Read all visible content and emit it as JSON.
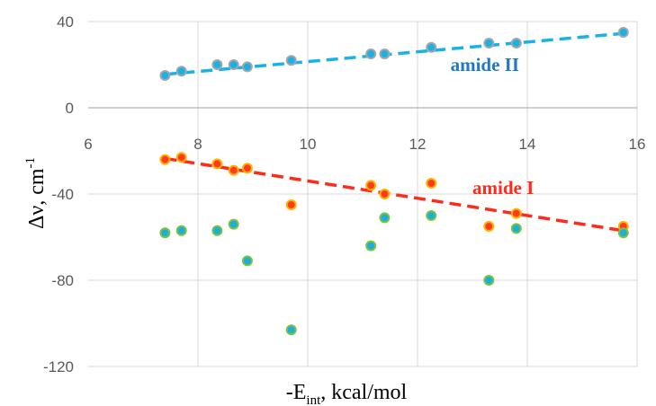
{
  "chart_data": {
    "type": "scatter",
    "title": "",
    "xlabel": {
      "base": "-E",
      "sub": "int",
      "rest": ", kcal/mol"
    },
    "ylabel": {
      "base": "Δν, cm",
      "sup": "-1"
    },
    "xlim": [
      6,
      16
    ],
    "ylim": [
      -120,
      40
    ],
    "xticks": [
      6,
      8,
      10,
      12,
      14,
      16
    ],
    "yticks": [
      40,
      0,
      -40,
      -80,
      -120
    ],
    "grid": {
      "vertical": true,
      "horizontal": true
    },
    "colors": {
      "amide_ii": "#1ab2e6",
      "amide_ii_label": "#1f78c8",
      "amide_i": "#ff2a1a",
      "amide_i_fill": "#ff3b1f",
      "amide_i_edge": "#ffb300",
      "third_fill": "#1ab0d8",
      "third_edge": "#7cc242",
      "axis": "#bfbfbf",
      "grid": "#d9d9d9"
    },
    "series": [
      {
        "name": "amide II",
        "x": [
          7.4,
          7.7,
          8.35,
          8.65,
          8.9,
          9.7,
          11.15,
          11.4,
          12.25,
          13.3,
          13.8,
          15.75
        ],
        "y": [
          15,
          17,
          20,
          20,
          19,
          22,
          25,
          25,
          28,
          30,
          30,
          35
        ],
        "trendline": {
          "type": "linear",
          "x": [
            7.4,
            15.75
          ],
          "y": [
            15.5,
            34.5
          ]
        }
      },
      {
        "name": "amide I",
        "x": [
          7.4,
          7.7,
          8.35,
          8.65,
          8.9,
          9.7,
          11.15,
          11.4,
          12.25,
          13.3,
          13.8,
          15.75
        ],
        "y": [
          -24,
          -23,
          -26,
          -29,
          -28,
          -45,
          -36,
          -40,
          -35,
          -55,
          -49,
          -55
        ],
        "trendline": {
          "type": "linear",
          "x": [
            7.4,
            15.75
          ],
          "y": [
            -23.5,
            -57
          ]
        }
      },
      {
        "x": [
          7.4,
          7.7,
          8.35,
          8.65,
          8.9,
          9.7,
          11.15,
          11.4,
          12.25,
          13.3,
          13.8,
          15.75
        ],
        "y": [
          -58,
          -57,
          -57,
          -54,
          -71,
          -103,
          -64,
          -51,
          -50,
          -80,
          -56,
          -58
        ]
      }
    ],
    "annotations": [
      {
        "text": "amide II",
        "x": 12.6,
        "y": 17
      },
      {
        "text": "amide I",
        "x": 13.0,
        "y": -40
      }
    ]
  }
}
